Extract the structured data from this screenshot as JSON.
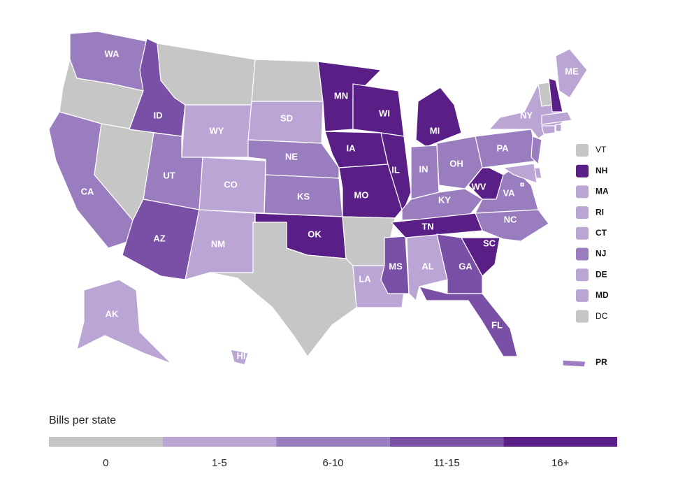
{
  "legend": {
    "title": "Bills per state",
    "bins": [
      {
        "label": "0",
        "color": "#c6c6c6"
      },
      {
        "label": "1-5",
        "color": "#bba5d4"
      },
      {
        "label": "6-10",
        "color": "#9a7dbf"
      },
      {
        "label": "11-15",
        "color": "#7a4fa6"
      },
      {
        "label": "16+",
        "color": "#5a1f86"
      }
    ]
  },
  "states": [
    {
      "label": "WA",
      "color": "#9a7dbf"
    },
    {
      "label": null,
      "color": "#c6c6c6"
    },
    {
      "label": "CA",
      "color": "#9a7dbf"
    },
    {
      "label": null,
      "color": "#c6c6c6"
    },
    {
      "label": "ID",
      "color": "#7a4fa6"
    },
    {
      "label": null,
      "color": "#c6c6c6"
    },
    {
      "label": "WY",
      "color": "#bba5d4"
    },
    {
      "label": "UT",
      "color": "#9a7dbf"
    },
    {
      "label": "AZ",
      "color": "#7a4fa6"
    },
    {
      "label": "CO",
      "color": "#bba5d4"
    },
    {
      "label": "NM",
      "color": "#bba5d4"
    },
    {
      "label": null,
      "color": "#c6c6c6"
    },
    {
      "label": "SD",
      "color": "#bba5d4"
    },
    {
      "label": "NE",
      "color": "#9a7dbf"
    },
    {
      "label": "KS",
      "color": "#9a7dbf"
    },
    {
      "label": "OK",
      "color": "#5a1f86"
    },
    {
      "label": null,
      "color": "#c6c6c6"
    },
    {
      "label": "MN",
      "color": "#5a1f86"
    },
    {
      "label": "IA",
      "color": "#5a1f86"
    },
    {
      "label": "MO",
      "color": "#5a1f86"
    },
    {
      "label": null,
      "color": "#c6c6c6"
    },
    {
      "label": "LA",
      "color": "#bba5d4"
    },
    {
      "label": "MS",
      "color": "#7a4fa6"
    },
    {
      "label": "AL",
      "color": "#bba5d4"
    },
    {
      "label": "WI",
      "color": "#5a1f86"
    },
    {
      "label": "IL",
      "color": "#5a1f86"
    },
    {
      "label": "MI",
      "color": "#5a1f86"
    },
    {
      "label": "IN",
      "color": "#9a7dbf"
    },
    {
      "label": "OH",
      "color": "#9a7dbf"
    },
    {
      "label": "KY",
      "color": "#9a7dbf"
    },
    {
      "label": "TN",
      "color": "#5a1f86"
    },
    {
      "label": "WV",
      "color": "#5a1f86"
    },
    {
      "label": "VA",
      "color": "#9a7dbf"
    },
    {
      "label": "NC",
      "color": "#9a7dbf"
    },
    {
      "label": "SC",
      "color": "#5a1f86"
    },
    {
      "label": "GA",
      "color": "#7a4fa6"
    },
    {
      "label": "FL",
      "color": "#7a4fa6"
    },
    {
      "label": "PA",
      "color": "#9a7dbf"
    },
    {
      "label": "NY",
      "color": "#bba5d4"
    },
    {
      "label": "ME",
      "color": "#bba5d4"
    },
    {
      "label": "AK",
      "color": "#bba5d4"
    },
    {
      "label": "HI",
      "color": "#bba5d4"
    }
  ],
  "small_states": [
    {
      "label": "VT",
      "color": "#c6c6c6"
    },
    {
      "label": "NH",
      "color": "#5a1f86"
    },
    {
      "label": "MA",
      "color": "#bba5d4"
    },
    {
      "label": "RI",
      "color": "#bba5d4"
    },
    {
      "label": "CT",
      "color": "#bba5d4"
    },
    {
      "label": "NJ",
      "color": "#9a7dbf"
    },
    {
      "label": "DE",
      "color": "#bba5d4"
    },
    {
      "label": "MD",
      "color": "#bba5d4"
    },
    {
      "label": "DC",
      "color": "#c6c6c6"
    },
    {
      "label": "PR",
      "color": "#9a7dbf"
    }
  ]
}
